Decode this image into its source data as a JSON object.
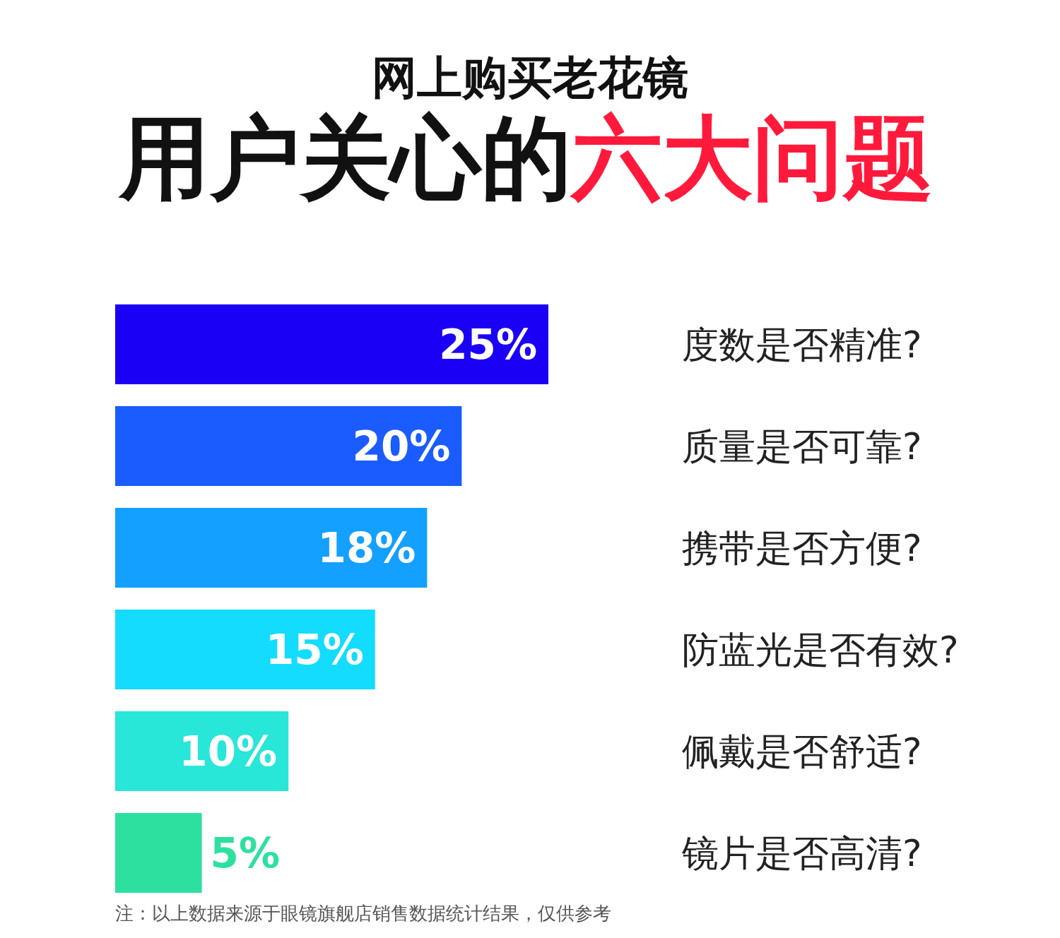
{
  "chart_data": {
    "type": "bar",
    "orientation": "horizontal",
    "title": "网上购买老花镜",
    "subtitle": "用户关心的**六大问题**",
    "categories": [
      "度数是否精准?",
      "质量是否可靠?",
      "携带是否方便?",
      "防蓝光是否有效?",
      "佩戴是否舒适?",
      "镜片是否高清?"
    ],
    "values": [
      25,
      20,
      18,
      15,
      10,
      5
    ],
    "colors": [
      "#1a00f5",
      "#1a5cff",
      "#14a0ff",
      "#14dcff",
      "#28e6d8",
      "#2ee0a0"
    ],
    "data_labels": true,
    "value_labels": [
      "25%",
      "20%",
      "18%",
      "15%",
      "10%",
      "5%"
    ],
    "annotations": [
      "注：以上数据来源于眼镜旗舰店销售数据统计结果，仅供参考"
    ]
  }
}
